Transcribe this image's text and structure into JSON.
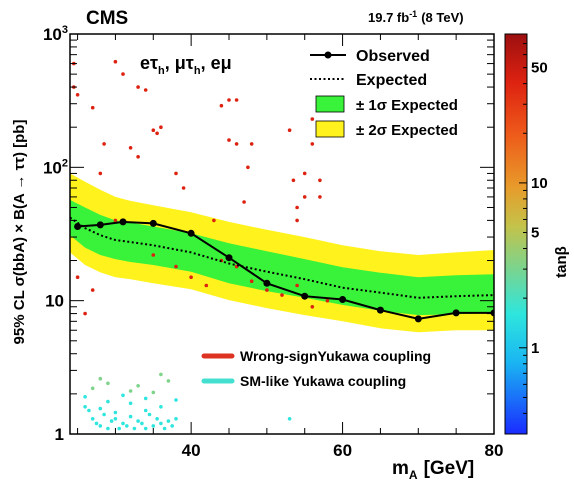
{
  "header": {
    "experiment": "CMS",
    "lumi_value": "19.7 fb",
    "lumi_exp": "-1",
    "lumi_energy": "(8 TeV)"
  },
  "chart_data": {
    "type": "line",
    "xlabel": "m",
    "xlabel_sub": "A",
    "xlabel_unit": "[GeV]",
    "ylabel": "95% CL  σ(bbA) × B(A → ττ) [pb]",
    "xlim": [
      24,
      80
    ],
    "ylim": [
      1,
      1000
    ],
    "y_scale": "log",
    "x_ticks": [
      40,
      60,
      80
    ],
    "y_ticks": [
      {
        "value": 1,
        "base": "1",
        "exp": ""
      },
      {
        "value": 10,
        "base": "10",
        "exp": ""
      },
      {
        "value": 100,
        "base": "10",
        "exp": "2"
      },
      {
        "value": 1000,
        "base": "10",
        "exp": "3"
      }
    ],
    "channel_label": [
      "eτ",
      "h",
      ", μτ",
      "h",
      ", eμ"
    ],
    "observed": {
      "name": "Observed",
      "x": [
        25,
        28,
        31,
        35,
        40,
        45,
        50,
        55,
        60,
        65,
        70,
        75,
        80
      ],
      "y": [
        36,
        37,
        39,
        38,
        32,
        21,
        13.5,
        10.8,
        10.2,
        8.5,
        7.3,
        8.1,
        8.1
      ]
    },
    "expected": {
      "name": "Expected",
      "x": [
        24,
        26,
        28,
        30,
        32,
        35,
        40,
        45,
        50,
        55,
        60,
        65,
        70,
        75,
        80
      ],
      "y": [
        42,
        35,
        31,
        28.5,
        27.5,
        26,
        23,
        19,
        16.5,
        14.5,
        12.5,
        11.5,
        10.5,
        10.8,
        11
      ]
    },
    "band_1sigma": {
      "name": "± 1σ Expected",
      "x": [
        24,
        26,
        28,
        30,
        32,
        35,
        40,
        45,
        50,
        55,
        60,
        65,
        70,
        75,
        80
      ],
      "low": [
        31,
        25,
        22,
        20.5,
        19.5,
        18.5,
        16.5,
        13.5,
        11.8,
        10.5,
        9.3,
        8.4,
        7.8,
        7.9,
        8.1
      ],
      "high": [
        57,
        50,
        44,
        40,
        38.5,
        36,
        32,
        27,
        23.5,
        20.5,
        17.8,
        16.2,
        15.0,
        15.5,
        15.8
      ]
    },
    "band_2sigma": {
      "name": "± 2σ Expected",
      "x": [
        24,
        26,
        28,
        30,
        32,
        35,
        40,
        45,
        50,
        55,
        60,
        65,
        70,
        75,
        80
      ],
      "low": [
        23,
        18.5,
        16.3,
        15,
        14.5,
        13.5,
        12.2,
        10.1,
        8.8,
        7.8,
        7.0,
        6.2,
        5.8,
        6.0,
        6.0
      ],
      "high": [
        90,
        78,
        68,
        60,
        56,
        52,
        46,
        39,
        34,
        30,
        26,
        23.5,
        22,
        23,
        24
      ]
    },
    "scan_wrong_sign": {
      "name": "Wrong-signYukawa coupling",
      "color": "#dd2211",
      "x": [
        24.5,
        24.5,
        25,
        27,
        28,
        28.5,
        30,
        31,
        32,
        33,
        33,
        34,
        35,
        35.5,
        36,
        38,
        39,
        43,
        44,
        45,
        45,
        46,
        46,
        47,
        47.5,
        48,
        53,
        53.5,
        54,
        54,
        55,
        55,
        56,
        56,
        57,
        57,
        30,
        35,
        38,
        40,
        42,
        44,
        46,
        48,
        50,
        52,
        54,
        56,
        58,
        25,
        27,
        26
      ],
      "y": [
        600,
        400,
        350,
        280,
        90,
        150,
        620,
        500,
        140,
        120,
        400,
        380,
        190,
        180,
        200,
        90,
        70,
        40,
        290,
        320,
        160,
        150,
        320,
        55,
        100,
        150,
        190,
        80,
        50,
        40,
        90,
        60,
        150,
        230,
        80,
        60,
        40,
        22,
        18,
        15,
        13,
        20,
        18,
        14,
        12,
        11,
        13,
        9,
        10,
        15,
        12,
        8
      ]
    },
    "scan_sm_like": {
      "name": "SM-like Yukawa coupling",
      "color": "#2ee6dd",
      "x": [
        26,
        26.5,
        27,
        27.5,
        28,
        28.5,
        29,
        29.5,
        30,
        30.5,
        31,
        31.5,
        32,
        32.5,
        33,
        33.5,
        34,
        34.5,
        35,
        35.5,
        36,
        36.5,
        37,
        37.5,
        38,
        26,
        28,
        30,
        32,
        34,
        36,
        38,
        27,
        29,
        31,
        33,
        35,
        37,
        28,
        32,
        36,
        29,
        34,
        53
      ],
      "y": [
        1.6,
        1.5,
        1.3,
        1.2,
        1.15,
        1.4,
        1.1,
        1.25,
        1.3,
        1.1,
        1.2,
        1.15,
        1.35,
        1.1,
        1.25,
        1.2,
        1.1,
        1.4,
        1.15,
        1.3,
        1.2,
        1.1,
        1.25,
        1.15,
        1.3,
        1.9,
        1.55,
        1.45,
        1.7,
        1.5,
        1.6,
        1.8,
        2.2,
        2.4,
        1.95,
        2.3,
        2.05,
        2.5,
        2.6,
        2.1,
        2.8,
        1.75,
        1.85,
        1.3
      ]
    },
    "colorbar": {
      "label": "tanβ",
      "min": 0.3,
      "max": 80,
      "ticks": [
        1,
        5,
        10,
        50
      ],
      "tick_labels": [
        "1",
        "5",
        "10",
        "50"
      ]
    }
  },
  "colors": {
    "band_2sigma": "#fff21d",
    "band_1sigma": "#39f23a",
    "observed": "#000000",
    "expected": "#000000"
  }
}
